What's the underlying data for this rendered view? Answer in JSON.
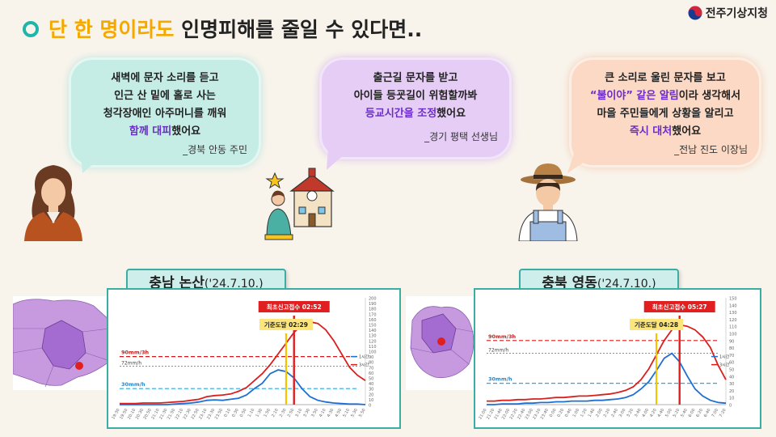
{
  "header": {
    "title_highlight": "단 한 명이라도",
    "title_rest": " 인명피해를 줄일 수 있다면..",
    "logo_text": "전주기상지청"
  },
  "testimonials": [
    {
      "lines": [
        "새벽에 문자 소리를 듣고",
        "인근 산 밑에 홀로 사는",
        "청각장애인 아주머니를 깨워"
      ],
      "emph": "함께 대피",
      "emph_suffix": "했어요",
      "signature": "_경북 안동 주민",
      "color": "#c6ece6"
    },
    {
      "lines": [
        "출근길 문자를 받고",
        "아이들 등굣길이 위험할까봐"
      ],
      "emph": "등교시간을 조정",
      "emph_suffix": "했어요",
      "signature": "_경기 평택 선생님",
      "color": "#e6cdf5"
    },
    {
      "line1": "큰 소리로 울린 문자를 보고",
      "emph_prefix": "“불이야” 같은 알림",
      "line2_rest": "이라 생각해서",
      "line3": "마을 주민들에게 상황을 알리고",
      "emph": "즉시 대처",
      "emph_suffix": "했어요",
      "signature": "_전남 진도 이장님",
      "color": "#fbd9c4"
    }
  ],
  "panels": [
    {
      "label_main": "충남 논산",
      "label_date": "('24.7.10.)",
      "first_report": "최초신고접수 02:52",
      "threshold_reached": "기준도달 02:29",
      "line_90": "90mm/3h",
      "line_72": "72mm/h",
      "line_30": "30mm/h",
      "legend_1h": "1시간",
      "legend_3h": "3시간"
    },
    {
      "label_main": "충북 영동",
      "label_date": "('24.7.10.)",
      "first_report": "최초신고접수 05:27",
      "threshold_reached": "기준도달 04:28",
      "line_90": "90mm/3h",
      "line_72": "72mm/h",
      "line_30": "30mm/h",
      "legend_1h": "1시간",
      "legend_3h": "3시간"
    }
  ],
  "chart_data": [
    {
      "type": "line",
      "x": [
        "19:30",
        "19:50",
        "20:10",
        "20:30",
        "20:50",
        "21:10",
        "21:30",
        "21:50",
        "22:10",
        "22:30",
        "22:50",
        "23:10",
        "23:30",
        "23:50",
        "0:10",
        "0:30",
        "0:50",
        "1:10",
        "1:30",
        "1:50",
        "2:10",
        "2:30",
        "2:50",
        "3:10",
        "3:30",
        "3:50",
        "4:10",
        "4:30",
        "4:50",
        "5:10",
        "5:30",
        "5:50"
      ],
      "series": [
        {
          "name": "1시간",
          "color": "#1f6fd1",
          "values": [
            0,
            0,
            0,
            0,
            0,
            0,
            0,
            1,
            2,
            3,
            5,
            8,
            9,
            8,
            10,
            12,
            18,
            30,
            40,
            58,
            65,
            62,
            50,
            30,
            15,
            8,
            5,
            3,
            2,
            1,
            1,
            0
          ]
        },
        {
          "name": "3시간",
          "color": "#d9201f",
          "values": [
            2,
            2,
            2,
            3,
            3,
            3,
            4,
            5,
            6,
            8,
            10,
            15,
            17,
            18,
            20,
            25,
            32,
            45,
            58,
            75,
            95,
            115,
            135,
            150,
            155,
            152,
            140,
            120,
            95,
            70,
            55,
            45
          ]
        }
      ],
      "y_left_ticks": [
        0,
        10,
        20,
        30,
        40,
        50,
        60,
        70,
        80,
        90,
        100,
        110,
        120,
        130,
        140,
        150,
        160,
        170,
        180,
        190,
        200
      ],
      "y_right_ticks": [
        0,
        10,
        20,
        30,
        40,
        50,
        60,
        70,
        80,
        90,
        100,
        110,
        120,
        130,
        140,
        150,
        160,
        170,
        180,
        190,
        200
      ],
      "thresholds": {
        "mm3h_90": 90,
        "mm1h_72": 72,
        "mm1h_30": 30
      },
      "markers": {
        "threshold_index": 21,
        "report_index": 22
      },
      "ylim": [
        0,
        200
      ]
    },
    {
      "type": "line",
      "x": [
        "21:00",
        "21:20",
        "21:40",
        "22:00",
        "22:20",
        "22:40",
        "23:00",
        "23:20",
        "23:40",
        "0:00",
        "0:20",
        "0:40",
        "1:00",
        "1:20",
        "1:40",
        "2:00",
        "2:20",
        "2:40",
        "3:00",
        "3:20",
        "3:40",
        "4:00",
        "4:20",
        "4:40",
        "5:00",
        "5:20",
        "5:40",
        "6:00",
        "6:20",
        "6:40",
        "7:00",
        "7:20"
      ],
      "series": [
        {
          "name": "1시간",
          "color": "#1f6fd1",
          "values": [
            0,
            0,
            1,
            1,
            1,
            2,
            2,
            3,
            3,
            4,
            4,
            5,
            5,
            5,
            6,
            6,
            7,
            8,
            10,
            14,
            22,
            32,
            48,
            65,
            72,
            60,
            40,
            22,
            12,
            6,
            3,
            2
          ]
        },
        {
          "name": "3시간",
          "color": "#d9201f",
          "values": [
            5,
            5,
            6,
            6,
            7,
            7,
            8,
            8,
            9,
            10,
            10,
            11,
            12,
            12,
            13,
            14,
            15,
            17,
            20,
            25,
            35,
            50,
            70,
            90,
            105,
            112,
            110,
            105,
            95,
            80,
            55,
            35
          ]
        }
      ],
      "y_left_ticks": [
        0,
        10,
        20,
        30,
        40,
        50,
        60,
        70,
        80,
        90,
        100,
        110,
        120,
        130,
        140,
        150
      ],
      "y_right_ticks": [
        0,
        10,
        20,
        30,
        40,
        50,
        60,
        70,
        80,
        90,
        100,
        110,
        120,
        130,
        140,
        150
      ],
      "thresholds": {
        "mm3h_90": 90,
        "mm1h_72": 72,
        "mm1h_30": 30
      },
      "markers": {
        "threshold_index": 22,
        "report_index": 25
      },
      "ylim": [
        0,
        150
      ]
    }
  ]
}
